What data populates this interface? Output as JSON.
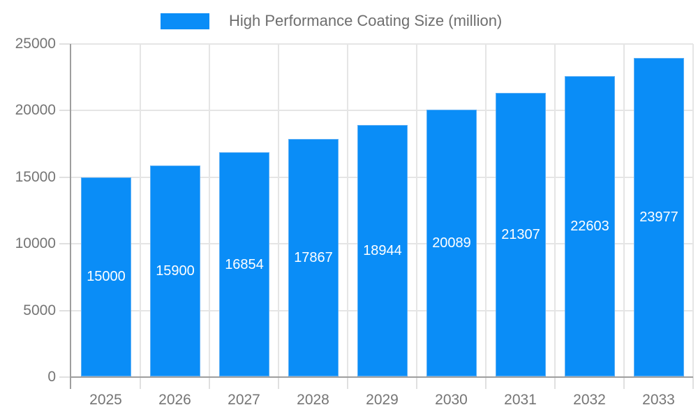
{
  "chart_data": {
    "type": "bar",
    "title": "High Performance Coating Size (million)",
    "legend_position": "top",
    "categories": [
      "2025",
      "2026",
      "2027",
      "2028",
      "2029",
      "2030",
      "2031",
      "2032",
      "2033"
    ],
    "series": [
      {
        "name": "High Performance Coating Size (million)",
        "values": [
          15000,
          15900,
          16854,
          17867,
          18944,
          20089,
          21307,
          22603,
          23977
        ]
      }
    ],
    "data_labels": [
      "15000",
      "15900",
      "16854",
      "17867",
      "18944",
      "20089",
      "21307",
      "22603",
      "23977"
    ],
    "xlabel": "",
    "ylabel": "",
    "ylim": [
      0,
      25000
    ],
    "y_ticks": [
      0,
      5000,
      10000,
      15000,
      20000,
      25000
    ],
    "y_tick_labels": [
      "0",
      "5000",
      "10000",
      "15000",
      "20000",
      "25000"
    ],
    "grid": true,
    "colors": {
      "bar": "#0a8df7",
      "bar_border": "#5fb0f5",
      "value_label": "#ffffff",
      "axis_text": "#757575",
      "legend_text": "#6e6e6e",
      "grid_line": "#e5e5e5",
      "tick_line": "#e0e0e0",
      "axis_line": "#9e9e9e"
    }
  }
}
